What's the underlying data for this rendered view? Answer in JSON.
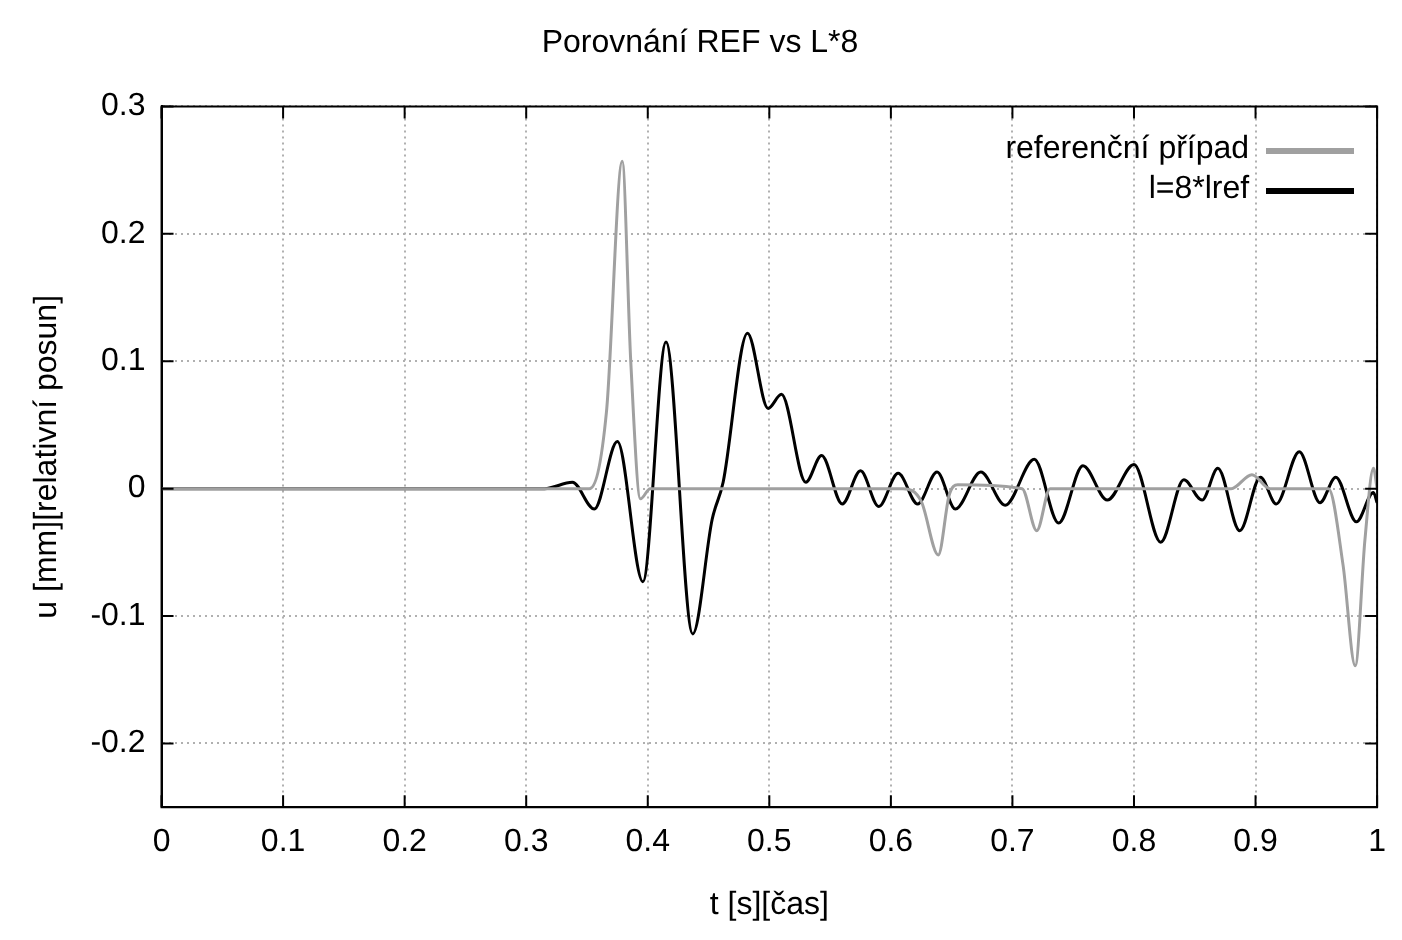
{
  "chart_data": {
    "type": "line",
    "title": "Porovnání REF vs L*8",
    "xlabel": "t [s][čas]",
    "ylabel": "u [mm][relativní posun]",
    "xlim": [
      0,
      1
    ],
    "xticks": [
      0,
      0.1,
      0.2,
      0.3,
      0.4,
      0.5,
      0.6,
      0.7,
      0.8,
      0.9,
      1
    ],
    "ylim": [
      -0.25,
      0.3
    ],
    "yticks": [
      -0.2,
      -0.1,
      0,
      0.1,
      0.2,
      0.3
    ],
    "grid": true,
    "legend": "top right",
    "marker": "none",
    "line_style": "solid",
    "series": [
      {
        "name": "referenční případ",
        "color": "#a0a0a0",
        "x": [
          0,
          0.352,
          0.366,
          0.379,
          0.386,
          0.394,
          0.402,
          0.61,
          0.625,
          0.639,
          0.648,
          0.655,
          0.708,
          0.72,
          0.731,
          0.88,
          0.897,
          0.912,
          0.96,
          0.972,
          0.982,
          0.99,
          0.997,
          1
        ],
        "values": [
          0,
          0,
          0.06,
          0.257,
          0.1,
          -0.008,
          0,
          0,
          -0.01,
          -0.052,
          -0.005,
          0.003,
          0,
          -0.033,
          0,
          0,
          0.011,
          0,
          0,
          -0.06,
          -0.139,
          -0.04,
          0.016,
          0
        ]
      },
      {
        "name": "l=8*lref",
        "color": "#000000",
        "x": [
          0,
          0.315,
          0.338,
          0.356,
          0.375,
          0.396,
          0.415,
          0.437,
          0.453,
          0.462,
          0.482,
          0.499,
          0.51,
          0.53,
          0.543,
          0.56,
          0.575,
          0.59,
          0.606,
          0.622,
          0.638,
          0.653,
          0.674,
          0.694,
          0.718,
          0.738,
          0.758,
          0.778,
          0.8,
          0.822,
          0.841,
          0.856,
          0.869,
          0.887,
          0.904,
          0.917,
          0.936,
          0.953,
          0.966,
          0.983,
          0.997,
          1
        ],
        "values": [
          0,
          0,
          0.005,
          -0.016,
          0.037,
          -0.073,
          0.115,
          -0.114,
          -0.024,
          0.005,
          0.122,
          0.063,
          0.074,
          0.005,
          0.026,
          -0.012,
          0.014,
          -0.014,
          0.012,
          -0.012,
          0.013,
          -0.016,
          0.013,
          -0.013,
          0.023,
          -0.027,
          0.018,
          -0.009,
          0.019,
          -0.042,
          0.007,
          -0.009,
          0.016,
          -0.033,
          0.009,
          -0.012,
          0.029,
          -0.011,
          0.009,
          -0.026,
          -0.003,
          -0.011
        ]
      }
    ]
  }
}
